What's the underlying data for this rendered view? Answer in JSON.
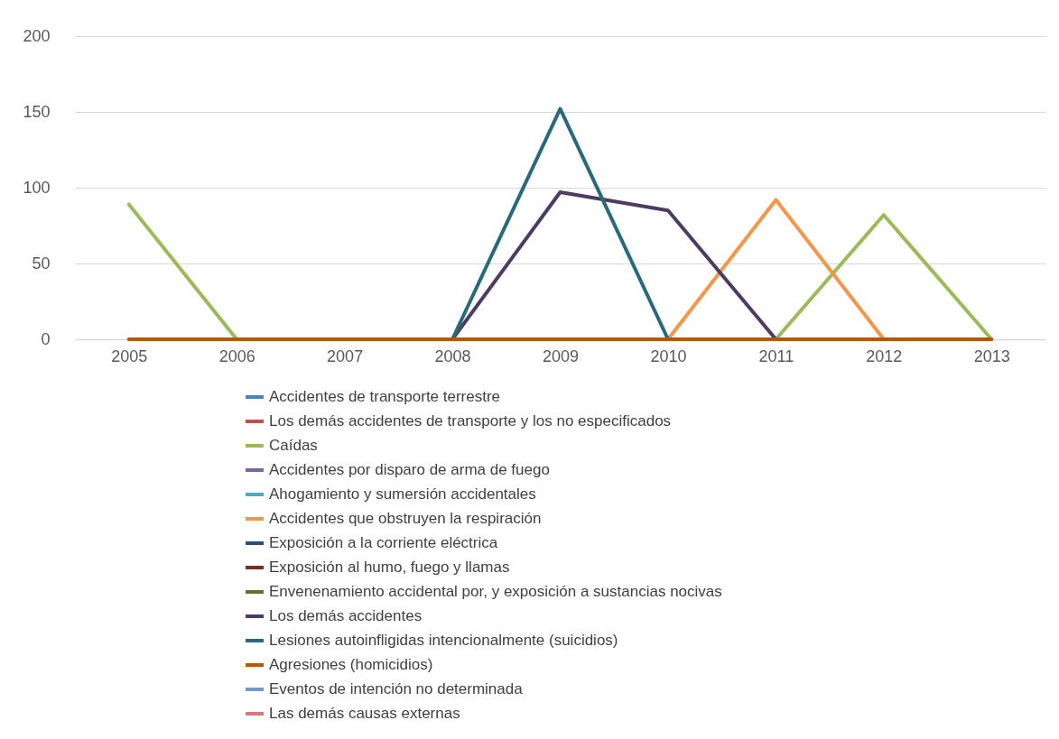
{
  "chart_data": {
    "type": "line",
    "categories": [
      "2005",
      "2006",
      "2007",
      "2008",
      "2009",
      "2010",
      "2011",
      "2012",
      "2013"
    ],
    "ylim": [
      0,
      200
    ],
    "yticks": [
      0,
      50,
      100,
      150,
      200
    ],
    "grid": "y",
    "legend": "bottom",
    "line_style": "solid",
    "marker": "none",
    "series": [
      {
        "name": "Accidentes de transporte terrestre",
        "color": "#4f81bd",
        "values": [
          null,
          null,
          null,
          null,
          null,
          null,
          null,
          null,
          null
        ]
      },
      {
        "name": "Los demás accidentes de transporte y los no especificados",
        "color": "#c0504d",
        "values": [
          null,
          null,
          null,
          null,
          null,
          null,
          null,
          null,
          null
        ]
      },
      {
        "name": "Caídas",
        "color": "#9bbb59",
        "values": [
          89,
          0,
          null,
          null,
          null,
          null,
          0,
          82,
          0
        ]
      },
      {
        "name": "Accidentes por disparo de arma de fuego",
        "color": "#8064a2",
        "values": [
          null,
          null,
          null,
          null,
          null,
          null,
          null,
          null,
          null
        ]
      },
      {
        "name": "Ahogamiento y sumersión accidentales",
        "color": "#4bacc6",
        "values": [
          null,
          null,
          null,
          null,
          null,
          null,
          null,
          null,
          null
        ]
      },
      {
        "name": "Accidentes que obstruyen la respiración",
        "color": "#f79646",
        "values": [
          null,
          null,
          null,
          null,
          null,
          0,
          92,
          0,
          null
        ]
      },
      {
        "name": "Exposición a la corriente eléctrica",
        "color": "#2c4d75",
        "values": [
          null,
          null,
          null,
          null,
          null,
          null,
          null,
          null,
          null
        ]
      },
      {
        "name": "Exposición al humo, fuego y llamas",
        "color": "#772c2a",
        "values": [
          null,
          null,
          null,
          null,
          null,
          null,
          null,
          null,
          null
        ]
      },
      {
        "name": "Envenenamiento accidental por, y exposición a sustancias nocivas",
        "color": "#5f7530",
        "values": [
          null,
          null,
          null,
          null,
          null,
          null,
          null,
          null,
          null
        ]
      },
      {
        "name": "Los demás accidentes",
        "color": "#4d3b62",
        "values": [
          null,
          null,
          null,
          0,
          97,
          85,
          0,
          null,
          null
        ]
      },
      {
        "name": "Lesiones autoinfligidas intencionalmente (suicidios)",
        "color": "#276a7c",
        "values": [
          null,
          null,
          null,
          0,
          152,
          0,
          null,
          null,
          null
        ]
      },
      {
        "name": "Agresiones (homicidios)",
        "color": "#b65708",
        "values": [
          0,
          0,
          0,
          0,
          0,
          0,
          0,
          0,
          0
        ]
      },
      {
        "name": "Eventos de intención no determinada",
        "color": "#729aca",
        "values": [
          null,
          null,
          null,
          null,
          null,
          null,
          null,
          null,
          null
        ]
      },
      {
        "name": "Las demás causas externas",
        "color": "#d07c7a",
        "values": [
          null,
          null,
          null,
          null,
          null,
          null,
          null,
          null,
          null
        ]
      }
    ]
  }
}
